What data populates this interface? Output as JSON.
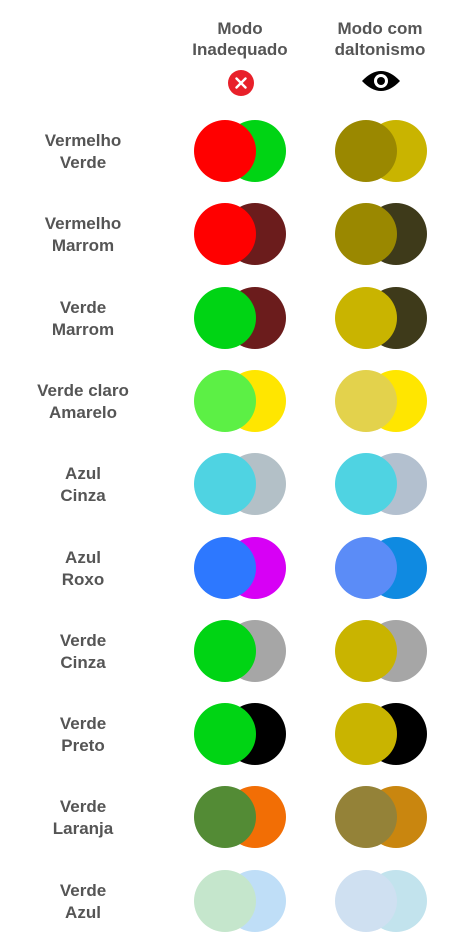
{
  "header": {
    "col1_lines": [
      "Modo",
      "Inadequado"
    ],
    "col2_lines": [
      "Modo com",
      "daltonismo"
    ],
    "col1_icon": "close-icon",
    "col2_icon": "eye-icon"
  },
  "rows": [
    {
      "lines": [
        "Vermelho",
        "Verde"
      ],
      "normal": [
        "#ff0000",
        "#00d414"
      ],
      "cb": [
        "#9a8800",
        "#c9b400"
      ]
    },
    {
      "lines": [
        "Vermelho",
        "Marrom"
      ],
      "normal": [
        "#ff0000",
        "#6b1c1c"
      ],
      "cb": [
        "#9a8800",
        "#3e3a1a"
      ]
    },
    {
      "lines": [
        "Verde",
        "Marrom"
      ],
      "normal": [
        "#00d414",
        "#6b1c1c"
      ],
      "cb": [
        "#c9b400",
        "#3e3a1a"
      ]
    },
    {
      "lines": [
        "Verde claro",
        "Amarelo"
      ],
      "normal": [
        "#5cf045",
        "#ffe600"
      ],
      "cb": [
        "#e3d24c",
        "#ffe600"
      ]
    },
    {
      "lines": [
        "Azul",
        "Cinza"
      ],
      "normal": [
        "#4fd3e2",
        "#b3c0c7"
      ],
      "cb": [
        "#4fd3e2",
        "#b3c0cf"
      ]
    },
    {
      "lines": [
        "Azul",
        "Roxo"
      ],
      "normal": [
        "#2d78ff",
        "#d700f5"
      ],
      "cb": [
        "#5b8cf7",
        "#0f8ae1"
      ]
    },
    {
      "lines": [
        "Verde",
        "Cinza"
      ],
      "normal": [
        "#00d414",
        "#a6a6a6"
      ],
      "cb": [
        "#c9b400",
        "#a6a6a6"
      ]
    },
    {
      "lines": [
        "Verde",
        "Preto"
      ],
      "normal": [
        "#00d414",
        "#000000"
      ],
      "cb": [
        "#c9b400",
        "#000000"
      ]
    },
    {
      "lines": [
        "Verde",
        "Laranja"
      ],
      "normal": [
        "#538b35",
        "#f26e05"
      ],
      "cb": [
        "#948238",
        "#c9860f"
      ]
    },
    {
      "lines": [
        "Verde",
        "Azul"
      ],
      "normal": [
        "#c5e6cc",
        "#bfdef7"
      ],
      "cb": [
        "#cfe0f1",
        "#c2e3ed"
      ]
    }
  ]
}
